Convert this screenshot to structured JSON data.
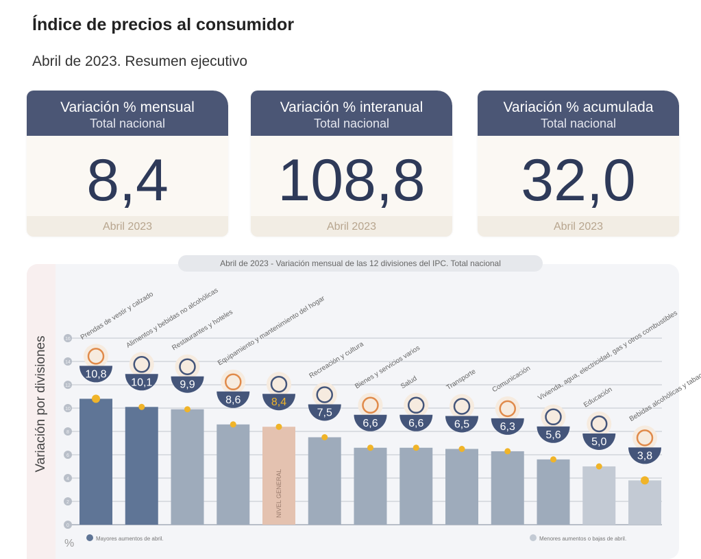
{
  "header": {
    "title": "Índice de precios al consumidor",
    "subtitle": "Abril de 2023. Resumen ejecutivo"
  },
  "cards": [
    {
      "title": "Variación % mensual",
      "subtitle": "Total nacional",
      "value": "8,4",
      "period": "Abril 2023"
    },
    {
      "title": "Variación % interanual",
      "subtitle": "Total nacional",
      "value": "108,8",
      "period": "Abril 2023"
    },
    {
      "title": "Variación % acumulada",
      "subtitle": "Total nacional",
      "value": "32,0",
      "period": "Abril 2023"
    }
  ],
  "chart_data": {
    "type": "bar",
    "title": "Abril de 2023 - Variación mensual de las 12 divisiones del IPC. Total nacional",
    "ylabel": "Variación por divisiones",
    "yunit": "%",
    "ylim": [
      0,
      16
    ],
    "yticks": [
      0,
      2,
      4,
      6,
      8,
      10,
      12,
      14,
      16
    ],
    "grid": true,
    "categories": [
      "Prendas de vestir y calzado",
      "Alimentos y bebidas no alcohólicas",
      "Restaurantes y hoteles",
      "Equipamiento y mantenimiento del hogar",
      "NIVEL GENERAL",
      "Recreación y cultura",
      "Bienes y servicios varios",
      "Salud",
      "Transporte",
      "Comunicación",
      "Vivienda, agua, electricidad, gas y otros combustibles",
      "Educación",
      "Bebidas alcohólicas y tabaco"
    ],
    "values": [
      10.8,
      10.1,
      9.9,
      8.6,
      8.4,
      7.5,
      6.6,
      6.6,
      6.5,
      6.3,
      5.6,
      5.0,
      3.8
    ],
    "value_labels": [
      "10,8",
      "10,1",
      "9,9",
      "8,6",
      "8,4",
      "7,5",
      "6,6",
      "6,6",
      "6,5",
      "6,3",
      "5,6",
      "5,0",
      "3,8"
    ],
    "groups": [
      "high",
      "high",
      "mid",
      "mid",
      "general",
      "mid",
      "mid",
      "mid",
      "mid",
      "mid",
      "mid",
      "low",
      "low"
    ],
    "general_bar_label": "NIVEL GENERAL",
    "legend": {
      "high": "Mayores aumentos de abril.",
      "low": "Menores aumentos o bajas de abril."
    },
    "colors": {
      "high": "#5f7596",
      "mid": "#9eabbb",
      "low": "#c3cad4",
      "general": "#e4c2b0",
      "bowl": "#44557a",
      "dot": "#f0b429",
      "accent": "#e08a4a"
    }
  }
}
